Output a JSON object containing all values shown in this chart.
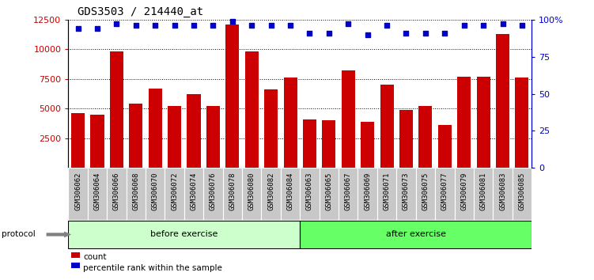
{
  "title": "GDS3503 / 214440_at",
  "categories": [
    "GSM306062",
    "GSM306064",
    "GSM306066",
    "GSM306068",
    "GSM306070",
    "GSM306072",
    "GSM306074",
    "GSM306076",
    "GSM306078",
    "GSM306080",
    "GSM306082",
    "GSM306084",
    "GSM306063",
    "GSM306065",
    "GSM306067",
    "GSM306069",
    "GSM306071",
    "GSM306073",
    "GSM306075",
    "GSM306077",
    "GSM306079",
    "GSM306081",
    "GSM306083",
    "GSM306085"
  ],
  "bar_values": [
    4600,
    4500,
    9800,
    5400,
    6700,
    5200,
    6200,
    5200,
    12100,
    9800,
    6600,
    7600,
    4100,
    4000,
    8200,
    3900,
    7000,
    4900,
    5200,
    3600,
    7700,
    7700,
    11300,
    7600
  ],
  "percentile_values": [
    94,
    94,
    97,
    96,
    96,
    96,
    96,
    96,
    99,
    96,
    96,
    96,
    91,
    91,
    97,
    90,
    96,
    91,
    91,
    91,
    96,
    96,
    97,
    96
  ],
  "bar_color": "#cc0000",
  "dot_color": "#0000cc",
  "ylim_left": [
    0,
    12500
  ],
  "ylim_right": [
    0,
    100
  ],
  "yticks_left": [
    2500,
    5000,
    7500,
    10000,
    12500
  ],
  "yticks_right": [
    0,
    25,
    50,
    75,
    100
  ],
  "ytick_labels_right": [
    "0",
    "25",
    "50",
    "75",
    "100%"
  ],
  "before_count": 12,
  "after_count": 12,
  "before_label": "before exercise",
  "after_label": "after exercise",
  "protocol_label": "protocol",
  "legend_count_label": "count",
  "legend_pct_label": "percentile rank within the sample",
  "before_color": "#ccffcc",
  "after_color": "#66ff66",
  "strip_bg": "#c8c8c8",
  "title_fontsize": 10,
  "tick_label_fontsize": 8
}
